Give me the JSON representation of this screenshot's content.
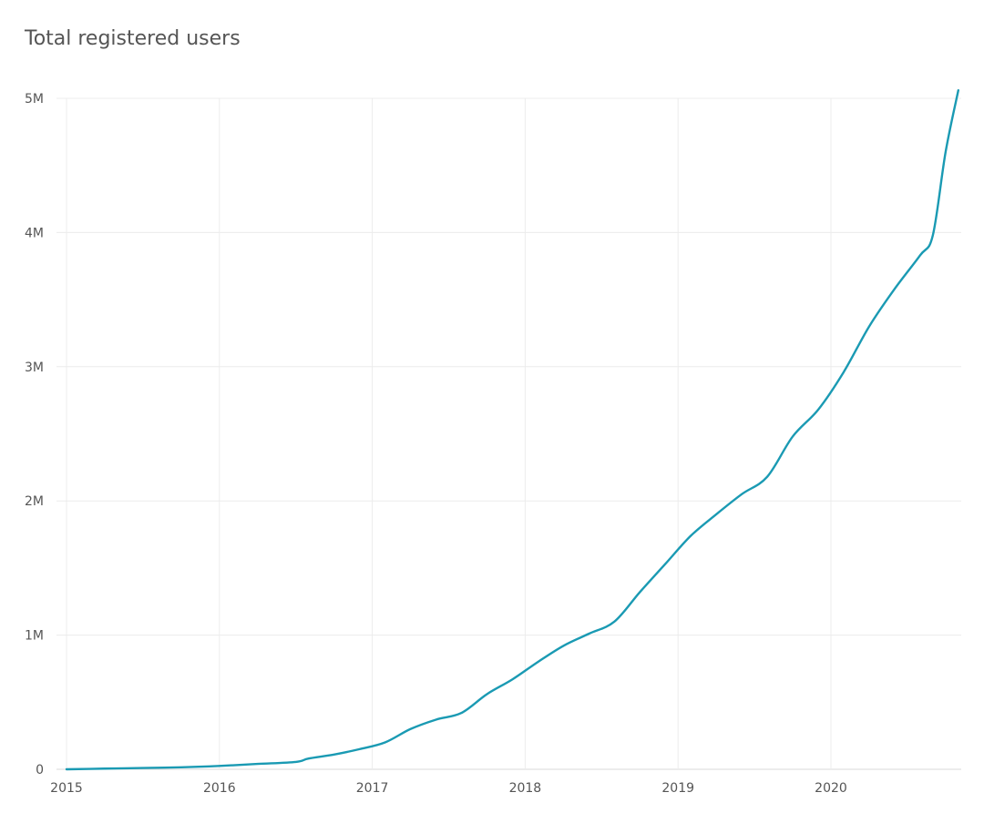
{
  "chart_data": {
    "type": "line",
    "title": "Total registered users",
    "xlabel": "",
    "ylabel": "",
    "x_tick_labels": [
      "2015",
      "2016",
      "2017",
      "2018",
      "2019",
      "2020"
    ],
    "y_tick_labels": [
      "0",
      "1M",
      "2M",
      "3M",
      "4M",
      "5M"
    ],
    "y_tick_values": [
      0,
      1000000,
      2000000,
      3000000,
      4000000,
      5000000
    ],
    "xlim": [
      "2015-01",
      "2020-11"
    ],
    "ylim": [
      0,
      5000000
    ],
    "grid": true,
    "legend": "none",
    "line_color": "#1a9ab3",
    "series": [
      {
        "x": [
          "2015-01",
          "2015-04",
          "2015-07",
          "2015-10",
          "2016-01",
          "2016-04",
          "2016-07",
          "2016-08",
          "2016-10",
          "2016-12",
          "2017-02",
          "2017-04",
          "2017-06",
          "2017-08",
          "2017-10",
          "2017-12",
          "2018-02",
          "2018-04",
          "2018-06",
          "2018-08",
          "2018-10",
          "2018-12",
          "2019-02",
          "2019-04",
          "2019-06",
          "2019-08",
          "2019-10",
          "2019-12",
          "2020-02",
          "2020-04",
          "2020-06",
          "2020-08",
          "2020-09",
          "2020-10",
          "2020-11"
        ],
        "values": [
          0,
          5000,
          10000,
          15000,
          25000,
          40000,
          55000,
          80000,
          110000,
          150000,
          200000,
          300000,
          370000,
          420000,
          560000,
          670000,
          800000,
          920000,
          1010000,
          1100000,
          1320000,
          1530000,
          1740000,
          1900000,
          2050000,
          2180000,
          2480000,
          2680000,
          2960000,
          3300000,
          3580000,
          3830000,
          3980000,
          4600000,
          5060000
        ]
      }
    ]
  }
}
